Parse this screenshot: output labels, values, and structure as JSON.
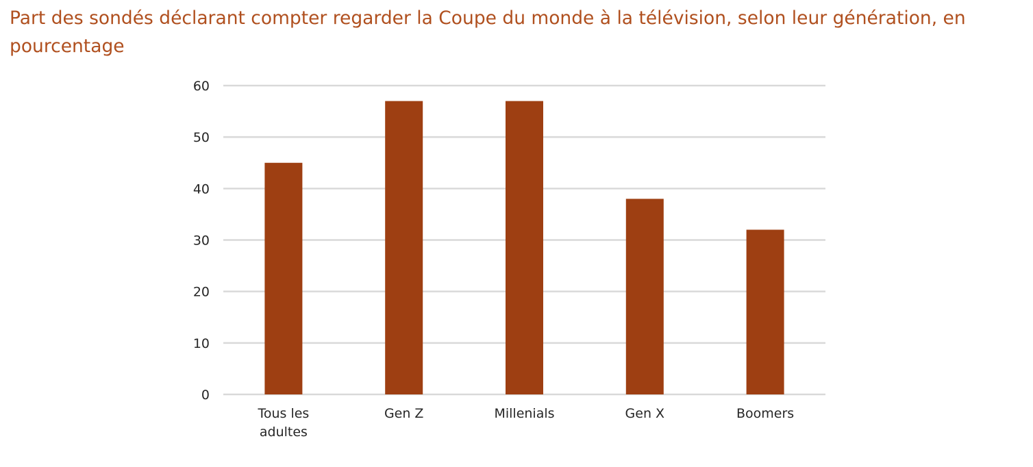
{
  "chart_data": {
    "type": "bar",
    "title": "Part des sondés déclarant compter regarder la Coupe du monde à la télévision, selon leur génération, en pourcentage",
    "xlabel": "",
    "ylabel": "",
    "categories": [
      [
        "Tous les",
        "adultes"
      ],
      [
        "Gen Z"
      ],
      [
        "Millenials"
      ],
      [
        "Gen X"
      ],
      [
        "Boomers"
      ]
    ],
    "values": [
      45,
      57,
      57,
      38,
      32
    ],
    "ylim": [
      0,
      60
    ],
    "yticks": [
      0,
      10,
      20,
      30,
      40,
      50,
      60
    ],
    "grid": true,
    "legend": "none",
    "bar_color": "#9e3f12",
    "grid_color": "#d9d9d9",
    "title_color": "#b0501f"
  }
}
